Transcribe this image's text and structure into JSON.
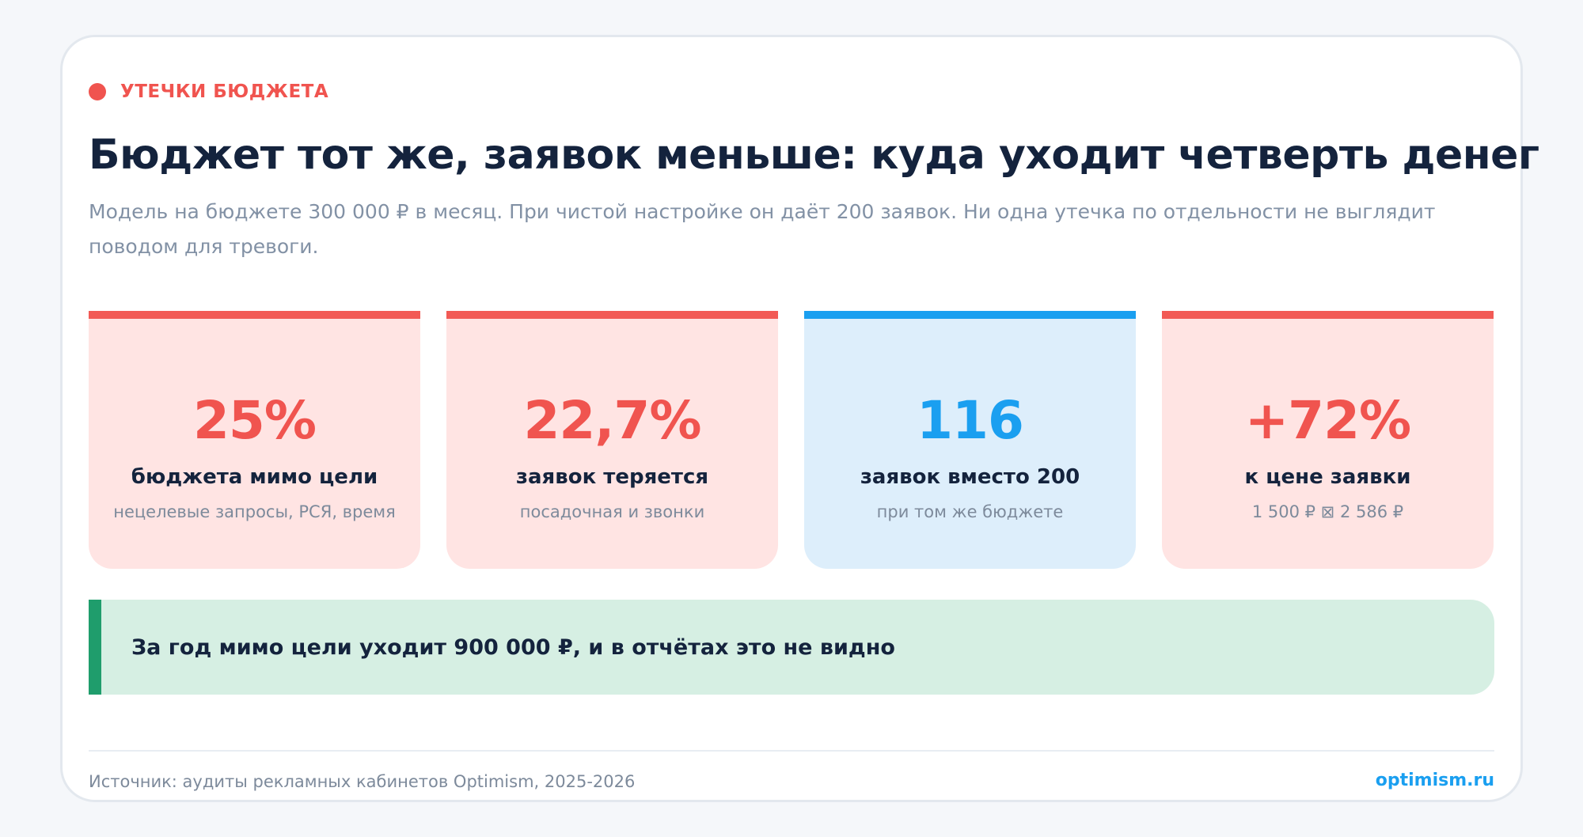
{
  "eyebrow": "УТЕЧКИ БЮДЖЕТА",
  "title": "Бюджет тот же, заявок меньше: куда уходит четверть денег",
  "subtitle": "Модель на бюджете 300 000 ₽ в месяц. При чистой настройке он даёт 200 заявок. Ни одна утечка по отдельности не выглядит поводом для тревоги.",
  "stats": [
    {
      "value": "25%",
      "label": "бюджета мимо цели",
      "note": "нецелевые запросы, РСЯ, время",
      "accent": "#f25a55"
    },
    {
      "value": "22,7%",
      "label": "заявок теряется",
      "note": "посадочная и звонки",
      "accent": "#f25a55"
    },
    {
      "value": "116",
      "label": "заявок вместо 200",
      "note": "при том же бюджете",
      "accent": "#1a9ff0"
    },
    {
      "value": "+72%",
      "label": "к цене заявки",
      "note": "1 500 ₽ ⊠ 2 586 ₽",
      "accent": "#f25a55"
    }
  ],
  "callout": "За год мимо цели уходит 900 000 ₽, и в отчётах это не видно",
  "footer": {
    "source": "Источник: аудиты рекламных кабинетов Optimism, 2025-2026",
    "site": "optimism.ru"
  },
  "colors": {
    "accent_red": "#f0544f",
    "accent_blue": "#1a9ff0",
    "accent_green": "#1f9d6c",
    "heading": "#14233d"
  }
}
